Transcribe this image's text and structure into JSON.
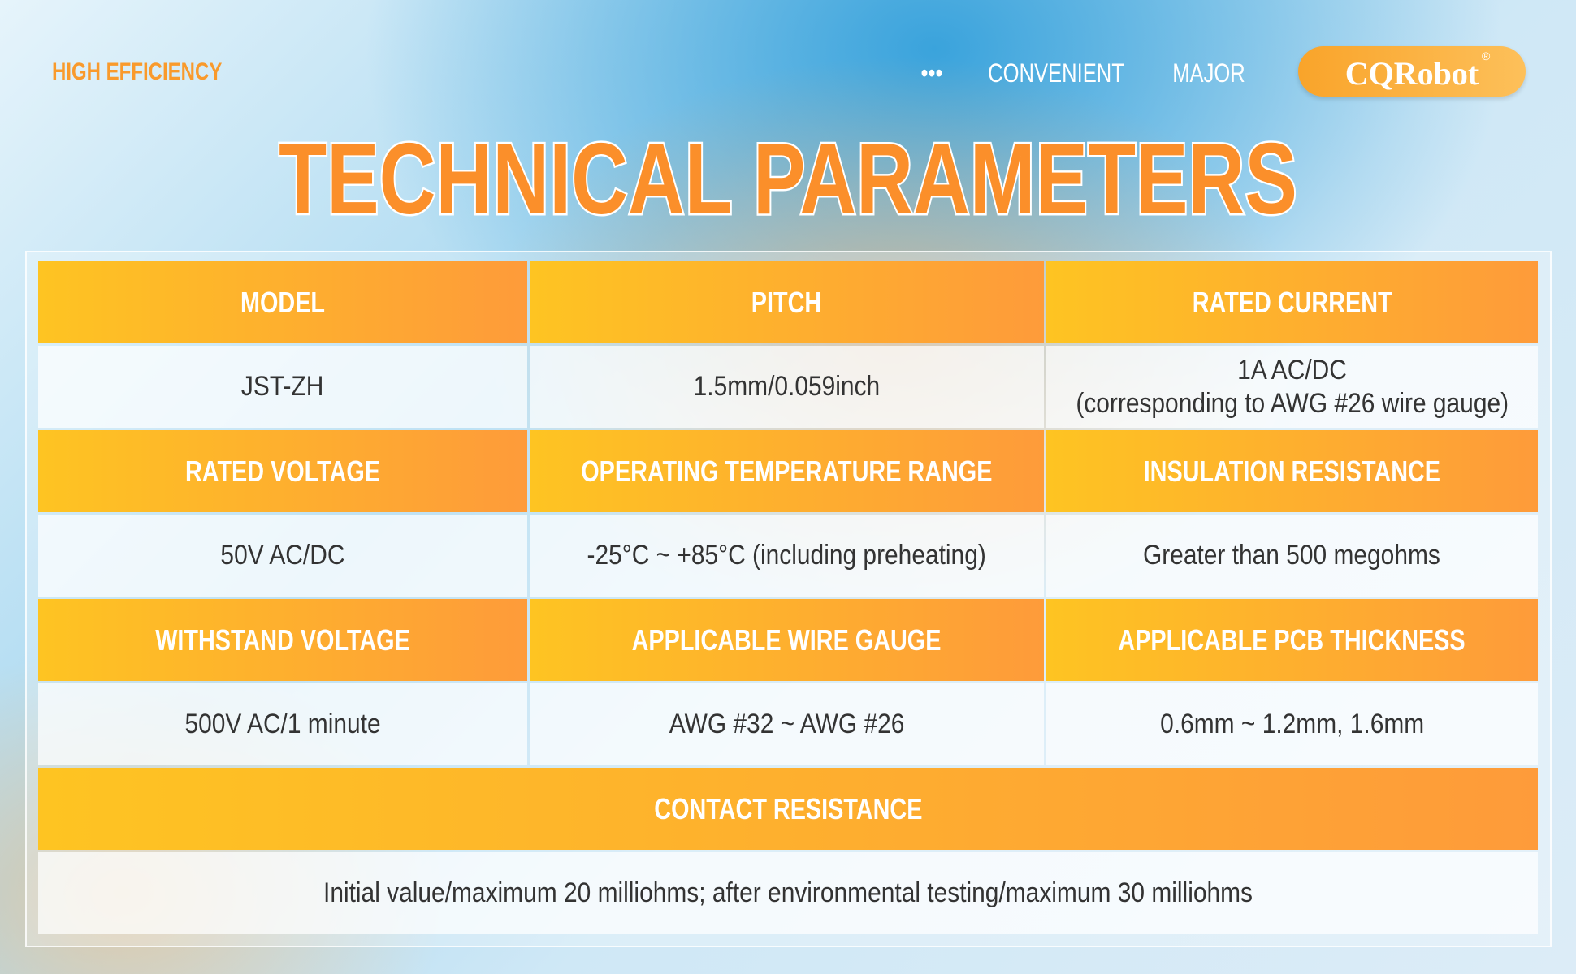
{
  "header": {
    "tagline": "HIGH EFFICIENCY",
    "nav": [
      "•••",
      "CONVENIENT",
      "MAJOR"
    ],
    "logo": "CQRobot",
    "logo_mark": "®"
  },
  "title": "TECHNICAL PARAMETERS",
  "table": {
    "sections": [
      {
        "labels": [
          "MODEL",
          "PITCH",
          "RATED CURRENT"
        ],
        "values": [
          [
            "JST-ZH"
          ],
          [
            "1.5mm/0.059inch"
          ],
          [
            "1A AC/DC",
            "(corresponding to AWG #26 wire gauge)"
          ]
        ]
      },
      {
        "labels": [
          "RATED VOLTAGE",
          "OPERATING TEMPERATURE RANGE",
          "INSULATION RESISTANCE"
        ],
        "values": [
          [
            "50V AC/DC"
          ],
          [
            "-25°C ~ +85°C (including preheating)"
          ],
          [
            "Greater than 500 megohms"
          ]
        ]
      },
      {
        "labels": [
          "WITHSTAND VOLTAGE",
          "APPLICABLE WIRE GAUGE",
          "APPLICABLE PCB THICKNESS"
        ],
        "values": [
          [
            "500V AC/1 minute"
          ],
          [
            "AWG #32 ~ AWG #26"
          ],
          [
            "0.6mm ~ 1.2mm, 1.6mm"
          ]
        ]
      },
      {
        "labels": [
          "CONTACT RESISTANCE"
        ],
        "values": [
          [
            "Initial value/maximum 20 milliohms; after environmental testing/maximum 30 milliohms"
          ]
        ]
      }
    ]
  }
}
